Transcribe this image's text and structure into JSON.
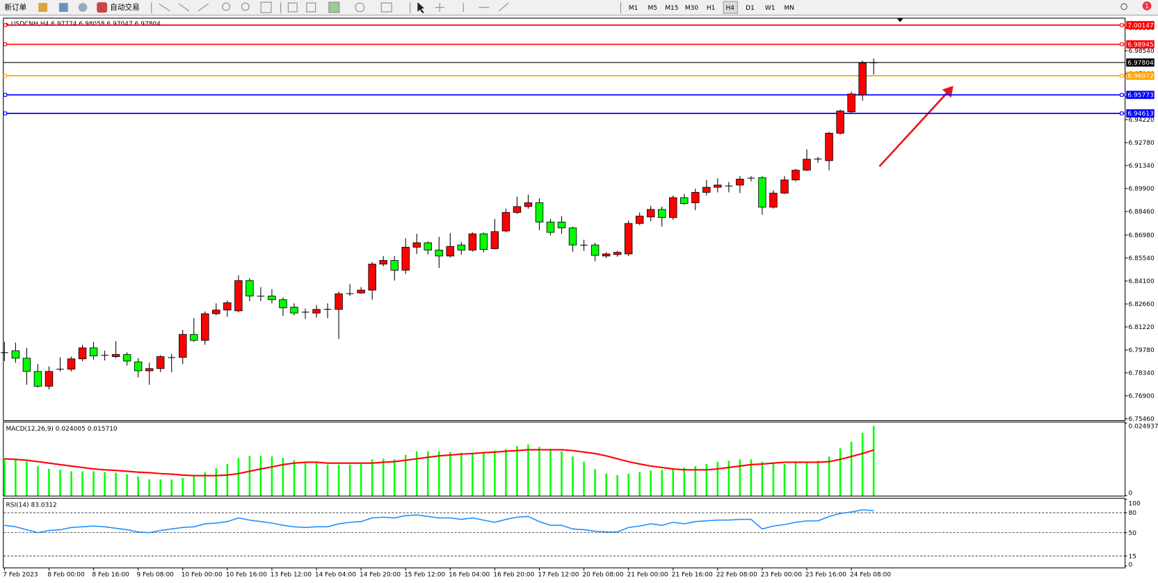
{
  "toolbar": {
    "new_order": "新订单",
    "auto_trading": "自动交易",
    "timeframes": [
      "M1",
      "M5",
      "M15",
      "M30",
      "H1",
      "H4",
      "D1",
      "W1",
      "MN"
    ],
    "active_timeframe": 5,
    "badge": "1"
  },
  "chart_data": [
    {
      "type": "candlestick",
      "title": "USDCNH,H4  6.97774 6.98058 6.97047 6.97804",
      "up_color": "#ff0000",
      "down_color": "#00ff00",
      "categories": [
        "7 Feb 2023",
        null,
        null,
        null,
        "8 Feb 00:00",
        null,
        null,
        null,
        "8 Feb 16:00",
        null,
        null,
        null,
        "9 Feb 08:00",
        null,
        null,
        null,
        "10 Feb 00:00",
        null,
        null,
        null,
        "10 Feb 16:00",
        null,
        null,
        null,
        "13 Feb 12:00",
        null,
        null,
        null,
        "14 Feb 04:00",
        null,
        null,
        null,
        "14 Feb 20:00",
        null,
        null,
        null,
        "15 Feb 12:00",
        null,
        null,
        null,
        "16 Feb 04:00",
        null,
        null,
        null,
        "16 Feb 20:00",
        null,
        null,
        null,
        "17 Feb 12:00",
        null,
        null,
        null,
        "20 Feb 08:00",
        null,
        null,
        null,
        "21 Feb 00:00",
        null,
        null,
        null,
        "21 Feb 16:00",
        null,
        null,
        null,
        "22 Feb 08:00",
        null,
        null,
        null,
        "23 Feb 00:00",
        null,
        null,
        null,
        "23 Feb 16:00",
        null,
        null,
        null,
        "24 Feb 08:00",
        null,
        null
      ],
      "open": [
        6.7959,
        6.7973,
        6.7926,
        6.7843,
        6.775,
        6.7857,
        6.7857,
        6.7922,
        6.7991,
        6.7945,
        6.7936,
        6.7949,
        6.7903,
        6.7847,
        6.7861,
        6.7931,
        6.7931,
        6.8075,
        6.8038,
        6.8205,
        6.8228,
        6.8223,
        6.8413,
        6.8316,
        6.8316,
        6.8293,
        6.8246,
        6.8214,
        6.8209,
        6.8232,
        6.8232,
        6.833,
        6.8335,
        6.8353,
        6.8516,
        6.8539,
        6.8478,
        6.8622,
        6.865,
        6.8604,
        6.8567,
        6.8636,
        6.8604,
        6.8706,
        6.8613,
        6.8724,
        6.884,
        6.8877,
        6.8901,
        6.878,
        6.878,
        6.8743,
        6.8636,
        6.8636,
        6.8567,
        6.8576,
        6.858,
        6.8771,
        6.8812,
        6.8859,
        6.8808,
        6.8933,
        6.8901,
        6.8966,
        6.8998,
        6.9007,
        6.9012,
        6.9054,
        6.9058,
        6.8873,
        6.8961,
        6.9044,
        6.9105,
        6.9174,
        6.9165,
        6.9337,
        6.9471,
        6.9578,
        6.97774
      ],
      "high": [
        6.8028,
        6.8024,
        6.7991,
        6.7889,
        6.7875,
        6.7931,
        6.7936,
        6.801,
        6.8028,
        6.7973,
        6.8033,
        6.7963,
        6.7926,
        6.7898,
        6.7945,
        6.7954,
        6.8103,
        6.8177,
        6.8219,
        6.827,
        6.8288,
        6.8446,
        6.8427,
        6.8372,
        6.8358,
        6.8307,
        6.827,
        6.8237,
        6.826,
        6.827,
        6.8344,
        6.839,
        6.8372,
        6.8529,
        6.8567,
        6.8567,
        6.8678,
        6.8706,
        6.8659,
        6.8687,
        6.871,
        6.8655,
        6.8715,
        6.8715,
        6.8799,
        6.8864,
        6.8938,
        6.8952,
        6.8928,
        6.8799,
        6.8817,
        6.8752,
        6.8669,
        6.865,
        6.859,
        6.8599,
        6.8789,
        6.884,
        6.8882,
        6.8877,
        6.8947,
        6.8956,
        6.8989,
        6.9044,
        6.9054,
        6.9031,
        6.9068,
        6.9068,
        6.9068,
        6.898,
        6.9068,
        6.9114,
        6.9235,
        6.9188,
        6.9346,
        6.9485,
        6.9597,
        6.9792,
        6.98058
      ],
      "low": [
        6.7908,
        6.7898,
        6.7759,
        6.7741,
        6.7731,
        6.7843,
        6.7843,
        6.7908,
        6.7917,
        6.7912,
        6.7926,
        6.788,
        6.7806,
        6.7759,
        6.7838,
        6.7838,
        6.7889,
        6.8028,
        6.801,
        6.8195,
        6.8186,
        6.8214,
        6.8284,
        6.8284,
        6.827,
        6.8191,
        6.8195,
        6.8172,
        6.8181,
        6.8177,
        6.8047,
        6.8316,
        6.833,
        6.8293,
        6.8502,
        6.8413,
        6.8455,
        6.858,
        6.8576,
        6.8492,
        6.8557,
        6.8576,
        6.8594,
        6.859,
        6.8608,
        6.8715,
        6.8831,
        6.8864,
        6.8729,
        6.8696,
        6.8706,
        6.8594,
        6.8599,
        6.8534,
        6.8553,
        6.8562,
        6.8567,
        6.8761,
        6.8785,
        6.8752,
        6.8794,
        6.8887,
        6.8854,
        6.8947,
        6.8966,
        6.8966,
        6.8961,
        6.9035,
        6.8826,
        6.8864,
        6.8956,
        6.9035,
        6.91,
        6.9151,
        6.9105,
        6.9328,
        6.9462,
        6.9541,
        6.97047
      ],
      "close": [
        6.7963,
        6.7926,
        6.7843,
        6.775,
        6.7843,
        6.7857,
        6.7922,
        6.7991,
        6.794,
        6.7943,
        6.7949,
        6.7908,
        6.7847,
        6.7861,
        6.7936,
        6.7929,
        6.8075,
        6.8038,
        6.8205,
        6.8228,
        6.8274,
        6.8413,
        6.8316,
        6.8314,
        6.8293,
        6.8242,
        6.8209,
        6.8216,
        6.8232,
        6.8234,
        6.833,
        6.8332,
        6.8353,
        6.8516,
        6.8539,
        6.8478,
        6.8622,
        6.865,
        6.8604,
        6.8567,
        6.8627,
        6.8604,
        6.8706,
        6.8608,
        6.872,
        6.884,
        6.8877,
        6.8901,
        6.878,
        6.8715,
        6.8743,
        6.8636,
        6.8634,
        6.8571,
        6.858,
        6.859,
        6.8771,
        6.8817,
        6.8859,
        6.8808,
        6.8933,
        6.8896,
        6.8966,
        6.8998,
        6.9012,
        6.9005,
        6.9049,
        6.9056,
        6.8873,
        6.8961,
        6.9044,
        6.9105,
        6.9174,
        6.9176,
        6.9337,
        6.9476,
        6.9583,
        6.9778,
        6.97804
      ],
      "ylim": [
        6.7537,
        7.0061
      ],
      "yticks": [
        {
          "value": 6.7546,
          "label": "6.75460"
        },
        {
          "value": 6.769,
          "label": "6.76900"
        },
        {
          "value": 6.7834,
          "label": "6.78340"
        },
        {
          "value": 6.7978,
          "label": "6.79780"
        },
        {
          "value": 6.8122,
          "label": "6.81220"
        },
        {
          "value": 6.8266,
          "label": "6.82660"
        },
        {
          "value": 6.841,
          "label": "6.84100"
        },
        {
          "value": 6.8554,
          "label": "6.85540"
        },
        {
          "value": 6.8698,
          "label": "6.86980"
        },
        {
          "value": 6.8846,
          "label": "6.88460"
        },
        {
          "value": 6.899,
          "label": "6.89900"
        },
        {
          "value": 6.9134,
          "label": "6.91340"
        },
        {
          "value": 6.9278,
          "label": "6.92780"
        },
        {
          "value": 6.9422,
          "label": "6.94220"
        },
        {
          "value": 6.9566,
          "label": "6.95660"
        },
        {
          "value": 6.971,
          "label": "6.97100"
        },
        {
          "value": 6.9854,
          "label": "6.98540"
        },
        {
          "value": 6.9998,
          "label": "6.99980"
        }
      ],
      "levels": [
        {
          "value": 7.00147,
          "color": "#ff0000"
        },
        {
          "value": 6.98945,
          "color": "#ff0000"
        },
        {
          "value": 6.97804,
          "color": "#000000"
        },
        {
          "value": 6.96972,
          "color": "#ffa500"
        },
        {
          "value": 6.95773,
          "color": "#0000ff"
        },
        {
          "value": 6.94613,
          "color": "#0000ff"
        }
      ]
    },
    {
      "type": "macd",
      "title": "MACD(12,26,9) 0.024005 0.015710",
      "histogram_color": "#00ff00",
      "signal_color": "#ff0000",
      "histogram": [
        0.0127,
        0.0122,
        0.0117,
        0.0102,
        0.0092,
        0.0089,
        0.0084,
        0.0084,
        0.0084,
        0.0081,
        0.0079,
        0.0074,
        0.0066,
        0.0056,
        0.0056,
        0.0056,
        0.0061,
        0.0066,
        0.0081,
        0.0094,
        0.0109,
        0.013,
        0.0137,
        0.0137,
        0.0135,
        0.013,
        0.0122,
        0.0115,
        0.0112,
        0.0107,
        0.0107,
        0.0107,
        0.0109,
        0.0125,
        0.0127,
        0.0125,
        0.014,
        0.0153,
        0.0153,
        0.0153,
        0.015,
        0.0148,
        0.0148,
        0.015,
        0.0155,
        0.016,
        0.0171,
        0.0176,
        0.0168,
        0.0158,
        0.0153,
        0.0135,
        0.0117,
        0.0092,
        0.0076,
        0.0071,
        0.0076,
        0.0081,
        0.0087,
        0.0089,
        0.0092,
        0.0097,
        0.0102,
        0.0109,
        0.0117,
        0.012,
        0.0125,
        0.0125,
        0.0117,
        0.0115,
        0.0109,
        0.0115,
        0.0117,
        0.012,
        0.0135,
        0.0163,
        0.0186,
        0.0216,
        0.024005
      ],
      "signal": [
        0.0127,
        0.0125,
        0.0122,
        0.0117,
        0.0112,
        0.0107,
        0.0102,
        0.0097,
        0.0092,
        0.0089,
        0.0087,
        0.0084,
        0.0081,
        0.0079,
        0.0076,
        0.0074,
        0.0071,
        0.0069,
        0.0069,
        0.0069,
        0.0071,
        0.0076,
        0.0084,
        0.0092,
        0.0099,
        0.0107,
        0.0112,
        0.0115,
        0.0115,
        0.0112,
        0.0112,
        0.0112,
        0.0112,
        0.0112,
        0.0115,
        0.0117,
        0.0122,
        0.0127,
        0.0132,
        0.0137,
        0.014,
        0.0143,
        0.0145,
        0.0148,
        0.015,
        0.0153,
        0.0155,
        0.0158,
        0.0158,
        0.0158,
        0.0158,
        0.0155,
        0.015,
        0.0145,
        0.0137,
        0.0127,
        0.0117,
        0.0109,
        0.0102,
        0.0097,
        0.0092,
        0.0089,
        0.0089,
        0.0089,
        0.0092,
        0.0097,
        0.0102,
        0.0107,
        0.0109,
        0.0112,
        0.0115,
        0.0115,
        0.0115,
        0.0115,
        0.0117,
        0.0125,
        0.0135,
        0.0145,
        0.01571
      ],
      "ylim": [
        0,
        0.024937
      ],
      "yticks": [
        0.024937,
        0
      ]
    },
    {
      "type": "rsi",
      "title": "RSI(14) 83.0312",
      "color": "#1e90ff",
      "values": [
        61.1,
        58.9,
        54.4,
        50,
        53.3,
        54.4,
        57.8,
        58.9,
        60,
        58.9,
        56.7,
        54.4,
        51.1,
        50,
        53.3,
        55.6,
        57.8,
        58.9,
        63.3,
        64.4,
        66.7,
        72.2,
        68.9,
        66.7,
        64.4,
        61.1,
        58.9,
        57.8,
        58.9,
        58.9,
        63.3,
        65.6,
        66.7,
        72.2,
        73.3,
        72.2,
        75.6,
        76.7,
        74.4,
        72.2,
        72.2,
        70,
        72.2,
        68.9,
        65.6,
        70,
        73.3,
        74.4,
        66.7,
        61.1,
        61.1,
        55.6,
        54.4,
        52.2,
        51.1,
        51.1,
        57.8,
        60,
        63.3,
        61.1,
        65.6,
        63.3,
        66.7,
        67.8,
        68.9,
        68.9,
        70,
        70,
        55.6,
        60,
        62.2,
        65.6,
        67.8,
        67.8,
        74.4,
        78.9,
        81.1,
        84.4,
        83.0312
      ],
      "levels": [
        80,
        50,
        15
      ],
      "ylim": [
        0,
        100
      ],
      "yticks": [
        100,
        80,
        50,
        15,
        0
      ]
    }
  ]
}
